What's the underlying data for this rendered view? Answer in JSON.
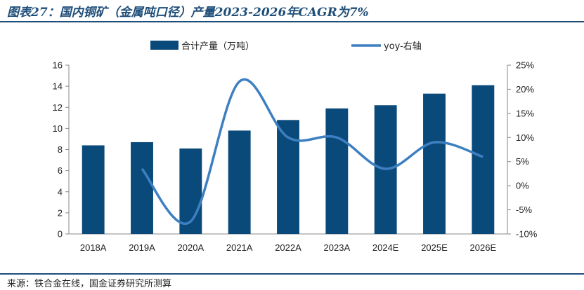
{
  "title": "图表27：国内铜矿（金属吨口径）产量2023-2026年CAGR为7%",
  "source": "来源：铁合金在线，国金证券研究所测算",
  "colors": {
    "bar": "#0a4a7a",
    "line": "#3d7fc1",
    "rule": "#1f4e79"
  },
  "chart_data": {
    "type": "bar",
    "categories": [
      "2018A",
      "2019A",
      "2020A",
      "2021A",
      "2022A",
      "2023A",
      "2024E",
      "2025E",
      "2026E"
    ],
    "series": [
      {
        "name": "合计产量（万吨）",
        "type": "bar",
        "axis": "left",
        "values": [
          8.4,
          8.7,
          8.1,
          9.8,
          10.8,
          11.9,
          12.2,
          13.3,
          14.1
        ]
      },
      {
        "name": "yoy-右轴",
        "type": "line",
        "axis": "right",
        "values": [
          null,
          3.5,
          -7.4,
          21.6,
          10.0,
          10.0,
          3.5,
          9.0,
          6.0
        ]
      }
    ],
    "ylim": [
      0,
      16
    ],
    "yticks": [
      "0",
      "2",
      "4",
      "6",
      "8",
      "10",
      "12",
      "14",
      "16"
    ],
    "y2lim": [
      -10,
      25
    ],
    "y2ticks": [
      "-10%",
      "-5%",
      "0%",
      "5%",
      "10%",
      "15%",
      "20%",
      "25%"
    ],
    "legend_position": "top",
    "grid": false
  }
}
